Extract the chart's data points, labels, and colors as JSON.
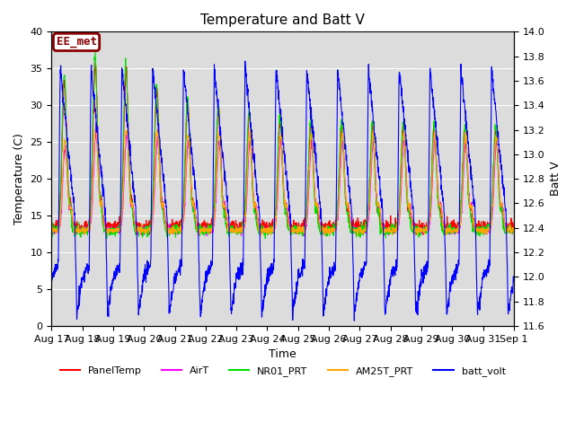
{
  "title": "Temperature and Batt V",
  "xlabel": "Time",
  "ylabel_left": "Temperature (C)",
  "ylabel_right": "Batt V",
  "ylim_left": [
    0,
    40
  ],
  "ylim_right": [
    11.6,
    14.0
  ],
  "annotation": "EE_met",
  "bg_color": "#dcdcdc",
  "fig_color": "#ffffff",
  "series_colors": {
    "PanelTemp": "#ff0000",
    "AirT": "#ff00ff",
    "NR01_PRT": "#00dd00",
    "AM25T_PRT": "#ffa500",
    "batt_volt": "#0000ff"
  },
  "x_tick_labels": [
    "Aug 17",
    "Aug 18",
    "Aug 19",
    "Aug 20",
    "Aug 21",
    "Aug 22",
    "Aug 23",
    "Aug 24",
    "Aug 25",
    "Aug 26",
    "Aug 27",
    "Aug 28",
    "Aug 29",
    "Aug 30",
    "Aug 31",
    "Sep 1"
  ],
  "n_days": 15,
  "pts_per_day": 144
}
